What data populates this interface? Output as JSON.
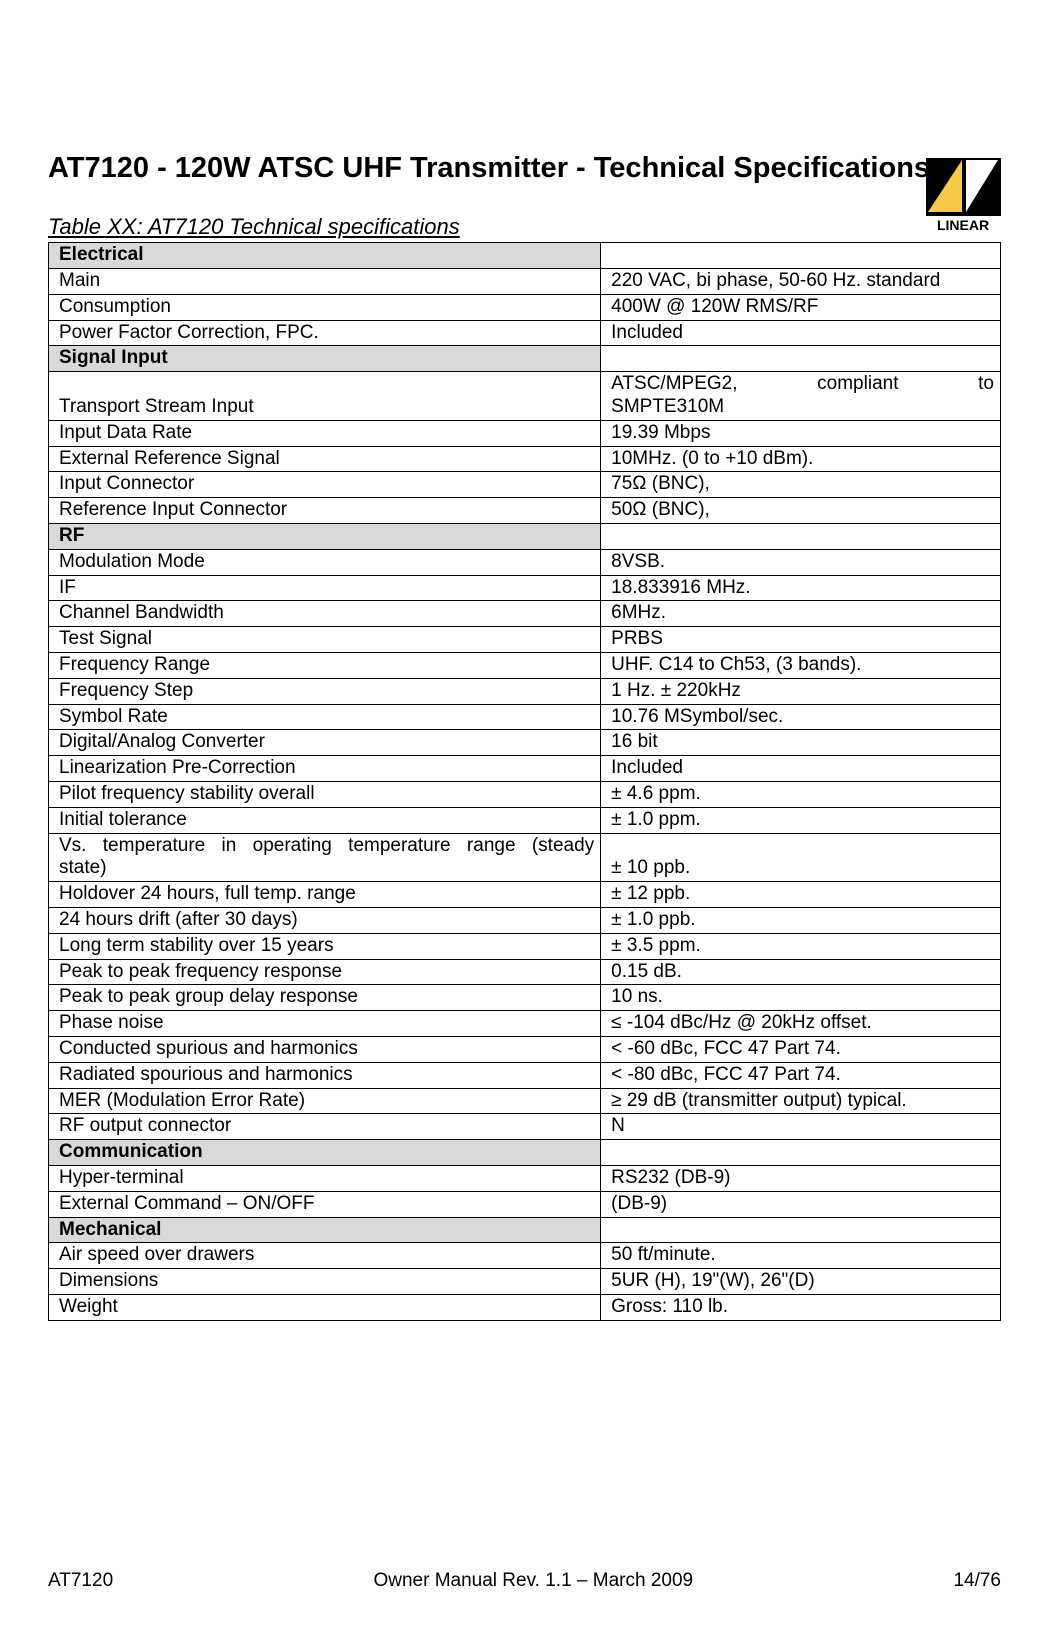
{
  "logo": {
    "text": "LINEAR"
  },
  "heading": "AT7120 - 120W ATSC UHF Transmitter - Technical Specifications",
  "table_caption": "Table XX: AT7120 Technical specifications",
  "sections": [
    {
      "title": "Electrical",
      "rows": [
        {
          "label": "Main",
          "value": "220 VAC, bi phase, 50-60 Hz. standard"
        },
        {
          "label": "Consumption",
          "value": "400W @ 120W RMS/RF"
        },
        {
          "label": "Power Factor Correction, FPC.",
          "value": "Included"
        }
      ]
    },
    {
      "title": "Signal Input",
      "rows": [
        {
          "label": "Transport Stream Input",
          "value_justified": [
            "ATSC/MPEG2,",
            "compliant",
            "to"
          ],
          "value_line2": "SMPTE310M"
        },
        {
          "label": "Input Data Rate",
          "value": "19.39 Mbps"
        },
        {
          "label": "External Reference Signal",
          "value": "10MHz. (0 to +10 dBm)."
        },
        {
          "label": "Input Connector",
          "value": "75Ω (BNC),"
        },
        {
          "label": "Reference Input Connector",
          "value": "50Ω (BNC),"
        }
      ]
    },
    {
      "title": "RF",
      "rows": [
        {
          "label": "Modulation Mode",
          "value": "8VSB."
        },
        {
          "label": "IF",
          "value": "18.833916 MHz."
        },
        {
          "label": "Channel Bandwidth",
          "value": "6MHz."
        },
        {
          "label": "Test Signal",
          "value": "PRBS"
        },
        {
          "label": "Frequency Range",
          "value": "UHF. C14 to Ch53, (3 bands)."
        },
        {
          "label": "Frequency Step",
          "value": "1 Hz. ± 220kHz"
        },
        {
          "label": "Symbol Rate",
          "value": "10.76 MSymbol/sec."
        },
        {
          "label": "Digital/Analog Converter",
          "value": "16 bit"
        },
        {
          "label": "Linearization Pre-Correction",
          "value": "Included"
        },
        {
          "label": "Pilot frequency stability overall",
          "value": "± 4.6 ppm."
        },
        {
          "label": "Initial tolerance",
          "value": "± 1.0 ppm."
        },
        {
          "label_justified": [
            "Vs.",
            "temperature",
            "in",
            "operating",
            "temperature",
            "range",
            "(steady"
          ],
          "label_line2": "state)",
          "value": "± 10 ppb."
        },
        {
          "label": "Holdover 24 hours, full temp. range",
          "value": "± 12 ppb."
        },
        {
          "label": "24 hours drift (after 30 days)",
          "value": "± 1.0 ppb."
        },
        {
          "label": "Long term stability over 15 years",
          "value": "± 3.5 ppm."
        },
        {
          "label": "Peak to peak frequency response",
          "value": "0.15 dB."
        },
        {
          "label": "Peak to peak group delay response",
          "value": "10 ns."
        },
        {
          "label": "Phase noise",
          "value": "≤ -104 dBc/Hz @ 20kHz offset."
        },
        {
          "label": "Conducted spurious and harmonics",
          "value": "< -60 dBc, FCC 47 Part 74."
        },
        {
          "label": "Radiated spourious and harmonics",
          "value": "< -80 dBc, FCC 47 Part 74."
        },
        {
          "label": "MER (Modulation Error Rate)",
          "value": "≥ 29 dB (transmitter output) typical."
        },
        {
          "label": "RF output connector",
          "value": "N"
        }
      ]
    },
    {
      "title": "Communication",
      "rows": [
        {
          "label": "Hyper-terminal",
          "value": "RS232 (DB-9)"
        },
        {
          "label": "External Command – ON/OFF",
          "value": "(DB-9)"
        }
      ]
    },
    {
      "title": "Mechanical",
      "rows": [
        {
          "label": "Air speed over drawers",
          "value": "50 ft/minute."
        },
        {
          "label": "Dimensions",
          "value": "5UR (H), 19\"(W), 26\"(D)"
        },
        {
          "label": "Weight",
          "value": "Gross:  110 lb."
        }
      ]
    }
  ],
  "footer": {
    "left": "AT7120",
    "center": "Owner Manual Rev. 1.1 – March 2009",
    "right": "14/76"
  },
  "colors": {
    "section_bg": "#d9d9d9",
    "border": "#000000",
    "text": "#000000",
    "logo_bg": "#000000",
    "logo_triangle": "#f7c948"
  }
}
